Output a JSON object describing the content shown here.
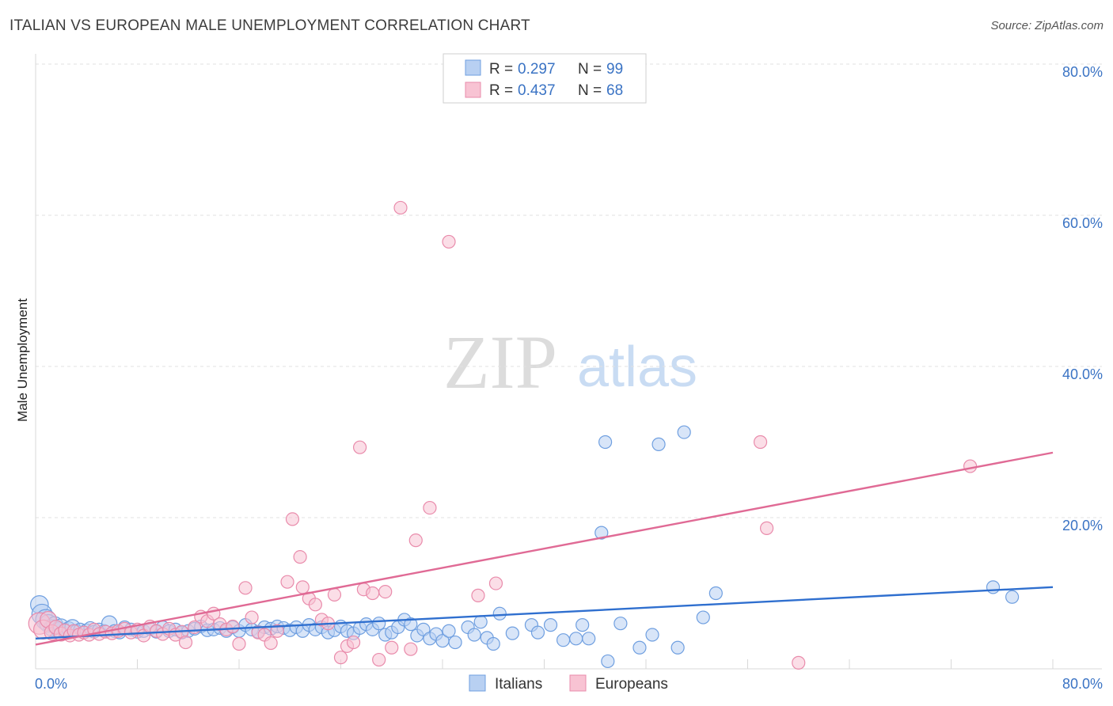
{
  "title": "ITALIAN VS EUROPEAN MALE UNEMPLOYMENT CORRELATION CHART",
  "source": "Source: ZipAtlas.com",
  "watermark": {
    "zip": "ZIP",
    "atlas": "atlas"
  },
  "chart_data": {
    "type": "scatter",
    "ylabel": "Male Unemployment",
    "xlim": [
      0,
      80
    ],
    "ylim": [
      0,
      80
    ],
    "x_tick_labels": [
      "0.0%",
      "80.0%"
    ],
    "y_ticks": [
      20,
      40,
      60,
      80
    ],
    "y_tick_labels": [
      "20.0%",
      "40.0%",
      "60.0%",
      "80.0%"
    ],
    "legend": {
      "rows": [
        {
          "r_label": "R =",
          "r_value": "0.297",
          "n_label": "N =",
          "n_value": "99"
        },
        {
          "r_label": "R =",
          "r_value": "0.437",
          "n_label": "N =",
          "n_value": "68"
        }
      ]
    },
    "series": [
      {
        "name": "Italians",
        "color": "#6f9fe0",
        "fill": "#b8d0f2",
        "line_color": "#2f6fcf",
        "trend": {
          "x": [
            0,
            80
          ],
          "y": [
            4.0,
            10.8
          ]
        },
        "points": [
          [
            0.3,
            8.5,
            1.4
          ],
          [
            0.5,
            7.2,
            1.6
          ],
          [
            0.8,
            6.5,
            1.6
          ],
          [
            1.0,
            6.0,
            1.4
          ],
          [
            1.3,
            5.4,
            1.3
          ],
          [
            1.5,
            5.8,
            1.3
          ],
          [
            1.8,
            5.2,
            1.2
          ],
          [
            2.0,
            5.6,
            1.2
          ],
          [
            2.3,
            5.0,
            1.1
          ],
          [
            2.6,
            5.3,
            1.1
          ],
          [
            2.9,
            5.5,
            1.2
          ],
          [
            3.2,
            5.0,
            1.0
          ],
          [
            3.5,
            5.2,
            1.0
          ],
          [
            3.8,
            4.8,
            1.0
          ],
          [
            4.0,
            5.1,
            1.0
          ],
          [
            4.3,
            5.4,
            1.0
          ],
          [
            4.6,
            4.9,
            1.0
          ],
          [
            5.0,
            5.2,
            1.0
          ],
          [
            5.4,
            5.0,
            1.0
          ],
          [
            5.8,
            6.0,
            1.2
          ],
          [
            6.2,
            5.0,
            1.0
          ],
          [
            6.6,
            4.8,
            1.0
          ],
          [
            7.0,
            5.5,
            1.0
          ],
          [
            7.5,
            5.2,
            1.0
          ],
          [
            8.0,
            4.9,
            1.0
          ],
          [
            8.5,
            5.0,
            1.0
          ],
          [
            9.0,
            5.3,
            1.0
          ],
          [
            9.5,
            4.9,
            1.0
          ],
          [
            10.0,
            5.5,
            1.0
          ],
          [
            10.5,
            5.0,
            1.0
          ],
          [
            11.0,
            5.2,
            1.0
          ],
          [
            11.5,
            4.8,
            1.0
          ],
          [
            12.0,
            5.0,
            1.0
          ],
          [
            12.5,
            5.3,
            1.0
          ],
          [
            13.0,
            5.6,
            1.0
          ],
          [
            13.5,
            5.1,
            1.0
          ],
          [
            14.0,
            5.2,
            1.0
          ],
          [
            14.5,
            5.4,
            1.0
          ],
          [
            15.0,
            5.0,
            1.0
          ],
          [
            15.5,
            5.5,
            1.0
          ],
          [
            16.0,
            5.0,
            1.0
          ],
          [
            16.5,
            5.8,
            1.0
          ],
          [
            17.0,
            5.2,
            1.0
          ],
          [
            17.5,
            4.9,
            1.0
          ],
          [
            18.0,
            5.5,
            1.0
          ],
          [
            18.5,
            5.3,
            1.0
          ],
          [
            19.0,
            5.6,
            1.0
          ],
          [
            19.5,
            5.4,
            1.0
          ],
          [
            20.0,
            5.1,
            1.0
          ],
          [
            20.5,
            5.5,
            1.0
          ],
          [
            21.0,
            5.0,
            1.0
          ],
          [
            21.5,
            5.8,
            1.0
          ],
          [
            22.0,
            5.2,
            1.0
          ],
          [
            22.5,
            5.5,
            1.0
          ],
          [
            23.0,
            4.8,
            1.0
          ],
          [
            23.5,
            5.1,
            1.0
          ],
          [
            24.0,
            5.6,
            1.0
          ],
          [
            24.5,
            5.0,
            1.0
          ],
          [
            25.0,
            4.7,
            1.0
          ],
          [
            25.5,
            5.4,
            1.0
          ],
          [
            26.0,
            5.9,
            1.0
          ],
          [
            26.5,
            5.2,
            1.0
          ],
          [
            27.0,
            6.0,
            1.0
          ],
          [
            27.5,
            4.5,
            1.0
          ],
          [
            28.0,
            4.8,
            1.0
          ],
          [
            28.5,
            5.5,
            1.0
          ],
          [
            29.0,
            6.5,
            1.0
          ],
          [
            29.5,
            5.9,
            1.0
          ],
          [
            30.0,
            4.4,
            1.0
          ],
          [
            30.5,
            5.2,
            1.0
          ],
          [
            31.0,
            4.0,
            1.0
          ],
          [
            31.5,
            4.6,
            1.0
          ],
          [
            32.0,
            3.7,
            1.0
          ],
          [
            32.5,
            5.0,
            1.0
          ],
          [
            33.0,
            3.5,
            1.0
          ],
          [
            34.0,
            5.5,
            1.0
          ],
          [
            34.5,
            4.5,
            1.0
          ],
          [
            35.0,
            6.2,
            1.0
          ],
          [
            35.5,
            4.1,
            1.0
          ],
          [
            36.0,
            3.3,
            1.0
          ],
          [
            36.5,
            7.3,
            1.0
          ],
          [
            37.5,
            4.7,
            1.0
          ],
          [
            39.0,
            5.8,
            1.0
          ],
          [
            39.5,
            4.8,
            1.0
          ],
          [
            40.5,
            5.8,
            1.0
          ],
          [
            41.5,
            3.8,
            1.0
          ],
          [
            42.5,
            4.0,
            1.0
          ],
          [
            43.0,
            5.8,
            1.0
          ],
          [
            43.5,
            4.0,
            1.0
          ],
          [
            44.5,
            18.0,
            1.0
          ],
          [
            45.0,
            1.0,
            1.0
          ],
          [
            46.0,
            6.0,
            1.0
          ],
          [
            47.5,
            2.8,
            1.0
          ],
          [
            48.5,
            4.5,
            1.0
          ],
          [
            49.0,
            29.7,
            1.0
          ],
          [
            50.5,
            2.8,
            1.0
          ],
          [
            51.0,
            31.3,
            1.0
          ],
          [
            52.5,
            6.8,
            1.0
          ],
          [
            53.5,
            10.0,
            1.0
          ],
          [
            44.8,
            30.0,
            1.0
          ],
          [
            75.3,
            10.8,
            1.0
          ],
          [
            76.8,
            9.5,
            1.0
          ]
        ]
      },
      {
        "name": "Europeans",
        "color": "#e98bab",
        "fill": "#f8c3d3",
        "line_color": "#e06a95",
        "trend": {
          "x": [
            0,
            80
          ],
          "y": [
            3.2,
            28.6
          ]
        },
        "points": [
          [
            0.3,
            6.0,
            1.7
          ],
          [
            0.6,
            5.2,
            1.5
          ],
          [
            1.0,
            6.5,
            1.3
          ],
          [
            1.3,
            4.8,
            1.2
          ],
          [
            1.6,
            5.5,
            1.1
          ],
          [
            2.0,
            4.6,
            1.1
          ],
          [
            2.3,
            5.1,
            1.0
          ],
          [
            2.7,
            4.4,
            1.0
          ],
          [
            3.0,
            5.0,
            1.0
          ],
          [
            3.4,
            4.5,
            1.0
          ],
          [
            3.8,
            4.8,
            1.0
          ],
          [
            4.2,
            4.5,
            1.0
          ],
          [
            4.6,
            5.2,
            1.0
          ],
          [
            5.0,
            4.6,
            1.0
          ],
          [
            5.5,
            4.9,
            1.0
          ],
          [
            6.0,
            4.7,
            1.0
          ],
          [
            6.5,
            5.0,
            1.0
          ],
          [
            7.0,
            5.3,
            1.0
          ],
          [
            7.5,
            4.8,
            1.0
          ],
          [
            8.0,
            5.2,
            1.0
          ],
          [
            8.5,
            4.4,
            1.0
          ],
          [
            9.0,
            5.6,
            1.0
          ],
          [
            9.5,
            5.0,
            1.0
          ],
          [
            10.0,
            4.6,
            1.0
          ],
          [
            10.5,
            5.3,
            1.0
          ],
          [
            11.0,
            4.5,
            1.0
          ],
          [
            11.5,
            4.9,
            1.0
          ],
          [
            11.8,
            3.5,
            1.0
          ],
          [
            12.5,
            5.5,
            1.0
          ],
          [
            13.0,
            6.9,
            1.0
          ],
          [
            13.5,
            6.3,
            1.0
          ],
          [
            14.0,
            7.3,
            1.0
          ],
          [
            14.5,
            5.9,
            1.0
          ],
          [
            15.0,
            5.2,
            1.0
          ],
          [
            15.5,
            5.6,
            1.0
          ],
          [
            16.0,
            3.3,
            1.0
          ],
          [
            16.5,
            10.7,
            1.0
          ],
          [
            17.0,
            6.8,
            1.0
          ],
          [
            17.5,
            4.8,
            1.0
          ],
          [
            18.0,
            4.5,
            1.0
          ],
          [
            18.5,
            3.4,
            1.0
          ],
          [
            19.0,
            5.0,
            1.0
          ],
          [
            19.8,
            11.5,
            1.0
          ],
          [
            20.2,
            19.8,
            1.0
          ],
          [
            20.8,
            14.8,
            1.0
          ],
          [
            21.0,
            10.8,
            1.0
          ],
          [
            21.5,
            9.3,
            1.0
          ],
          [
            22.0,
            8.5,
            1.0
          ],
          [
            22.5,
            6.5,
            1.0
          ],
          [
            23.0,
            6.0,
            1.0
          ],
          [
            23.5,
            9.8,
            1.0
          ],
          [
            24.0,
            1.5,
            1.0
          ],
          [
            24.5,
            3.0,
            1.0
          ],
          [
            25.0,
            3.5,
            1.0
          ],
          [
            25.5,
            29.3,
            1.0
          ],
          [
            25.8,
            10.5,
            1.0
          ],
          [
            26.5,
            10.0,
            1.0
          ],
          [
            27.0,
            1.2,
            1.0
          ],
          [
            27.5,
            10.2,
            1.0
          ],
          [
            28.0,
            2.8,
            1.0
          ],
          [
            28.7,
            61.0,
            1.0
          ],
          [
            29.5,
            2.6,
            1.0
          ],
          [
            29.9,
            17.0,
            1.0
          ],
          [
            31.0,
            21.3,
            1.0
          ],
          [
            32.5,
            56.5,
            1.0
          ],
          [
            34.8,
            9.7,
            1.0
          ],
          [
            36.2,
            11.3,
            1.0
          ],
          [
            57.0,
            30.0,
            1.0
          ],
          [
            57.5,
            18.6,
            1.0
          ],
          [
            60.0,
            0.8,
            1.0
          ],
          [
            73.5,
            26.8,
            1.0
          ]
        ]
      }
    ]
  }
}
